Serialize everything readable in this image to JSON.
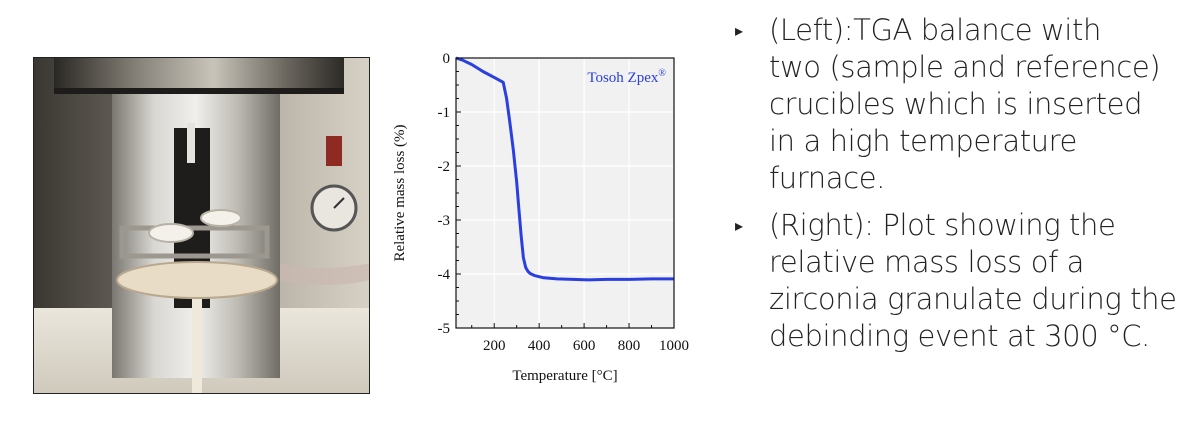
{
  "photo": {
    "description_icon": "tga-balance-photo"
  },
  "bullets": [
    {
      "marker": "▸",
      "lines": [
        "(Left):TGA balance with",
        "two (sample and reference)",
        "crucibles which is inserted",
        "in a high temperature",
        "furnace."
      ]
    },
    {
      "marker": "▸",
      "lines": [
        "(Right): Plot showing the",
        "relative mass loss of a",
        "zirconia granulate during the",
        "debinding event at 300 °C."
      ]
    }
  ],
  "chart_data": {
    "type": "line",
    "xlabel": "Temperature [°C]",
    "ylabel": "Relative mass loss (%)",
    "xlim": [
      30,
      1000
    ],
    "ylim": [
      -5,
      0
    ],
    "xticks": [
      200,
      400,
      600,
      800,
      1000
    ],
    "yticks": [
      0,
      -1,
      -2,
      -3,
      -4,
      -5
    ],
    "grid": true,
    "legend_label": "Tosoh Zpex",
    "legend_superscript": "®",
    "legend_position": "top-right",
    "series_color": "#2a3fe0",
    "series": [
      {
        "name": "Tosoh Zpex",
        "x": [
          30,
          60,
          100,
          150,
          200,
          240,
          255,
          270,
          285,
          300,
          310,
          320,
          330,
          340,
          350,
          360,
          380,
          420,
          480,
          550,
          620,
          700,
          800,
          900,
          1000
        ],
        "y": [
          0,
          -0.04,
          -0.12,
          -0.25,
          -0.36,
          -0.45,
          -0.75,
          -1.2,
          -1.7,
          -2.3,
          -2.8,
          -3.3,
          -3.7,
          -3.88,
          -3.95,
          -3.99,
          -4.03,
          -4.07,
          -4.09,
          -4.1,
          -4.11,
          -4.1,
          -4.1,
          -4.09,
          -4.09
        ]
      }
    ]
  }
}
